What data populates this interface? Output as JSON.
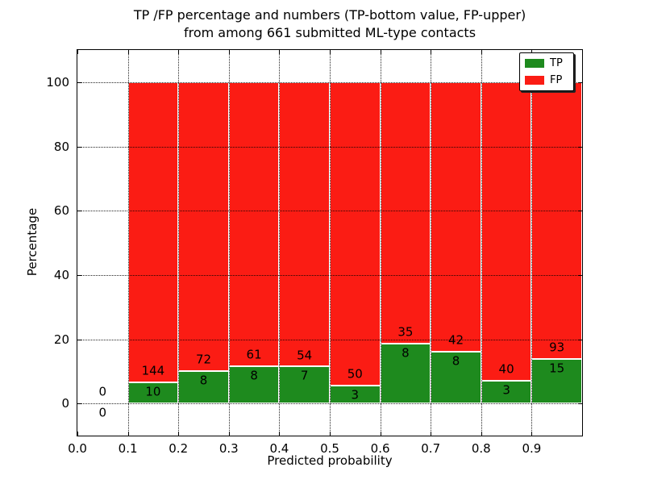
{
  "title": {
    "line1": "TP /FP percentage and numbers (TP-bottom value, FP-upper)",
    "line2": "from among 661 submitted ML-type contacts"
  },
  "axes": {
    "xlabel": "Predicted probability",
    "ylabel": "Percentage",
    "x_tick_labels": [
      "0.0",
      "0.1",
      "0.2",
      "0.3",
      "0.4",
      "0.5",
      "0.6",
      "0.7",
      "0.8",
      "0.9"
    ],
    "y_tick_labels": [
      "0",
      "20",
      "40",
      "60",
      "80",
      "100"
    ],
    "grid_style": "dotted"
  },
  "legend": {
    "position": "upper-right",
    "entries": [
      {
        "label": "TP",
        "color": "#1e8a1e"
      },
      {
        "label": "FP",
        "color": "#fb1c14"
      }
    ]
  },
  "chart_data": {
    "type": "bar",
    "stacked": true,
    "unit": "percent",
    "title": "TP /FP percentage and numbers (TP-bottom value, FP-upper) from among 661 submitted ML-type contacts",
    "xlabel": "Predicted probability",
    "ylabel": "Percentage",
    "xlim": [
      0.0,
      1.0
    ],
    "ylim": [
      -10,
      110
    ],
    "grid": true,
    "legend_position": "upper-right",
    "total_contacts": 661,
    "bin_width": 0.1,
    "label_note": "TP count printed at bottom of each stack, FP count printed above it",
    "series": [
      {
        "name": "TP",
        "color": "#1e8a1e"
      },
      {
        "name": "FP",
        "color": "#fb1c14"
      }
    ],
    "bins": [
      {
        "x_start": 0.0,
        "x_end": 0.1,
        "tp_count": 0,
        "fp_count": 0,
        "tp_pct": 0,
        "fp_pct": 0
      },
      {
        "x_start": 0.1,
        "x_end": 0.2,
        "tp_count": 10,
        "fp_count": 144,
        "tp_pct": 6.49,
        "fp_pct": 93.51
      },
      {
        "x_start": 0.2,
        "x_end": 0.3,
        "tp_count": 8,
        "fp_count": 72,
        "tp_pct": 10.0,
        "fp_pct": 90.0
      },
      {
        "x_start": 0.3,
        "x_end": 0.4,
        "tp_count": 8,
        "fp_count": 61,
        "tp_pct": 11.59,
        "fp_pct": 88.41
      },
      {
        "x_start": 0.4,
        "x_end": 0.5,
        "tp_count": 7,
        "fp_count": 54,
        "tp_pct": 11.48,
        "fp_pct": 88.52
      },
      {
        "x_start": 0.5,
        "x_end": 0.6,
        "tp_count": 3,
        "fp_count": 50,
        "tp_pct": 5.66,
        "fp_pct": 94.34
      },
      {
        "x_start": 0.6,
        "x_end": 0.7,
        "tp_count": 8,
        "fp_count": 35,
        "tp_pct": 18.6,
        "fp_pct": 81.4
      },
      {
        "x_start": 0.7,
        "x_end": 0.8,
        "tp_count": 8,
        "fp_count": 42,
        "tp_pct": 16.0,
        "fp_pct": 84.0
      },
      {
        "x_start": 0.8,
        "x_end": 0.9,
        "tp_count": 3,
        "fp_count": 40,
        "tp_pct": 6.98,
        "fp_pct": 93.02
      },
      {
        "x_start": 0.9,
        "x_end": 1.0,
        "tp_count": 15,
        "fp_count": 93,
        "tp_pct": 13.89,
        "fp_pct": 86.11
      }
    ]
  }
}
